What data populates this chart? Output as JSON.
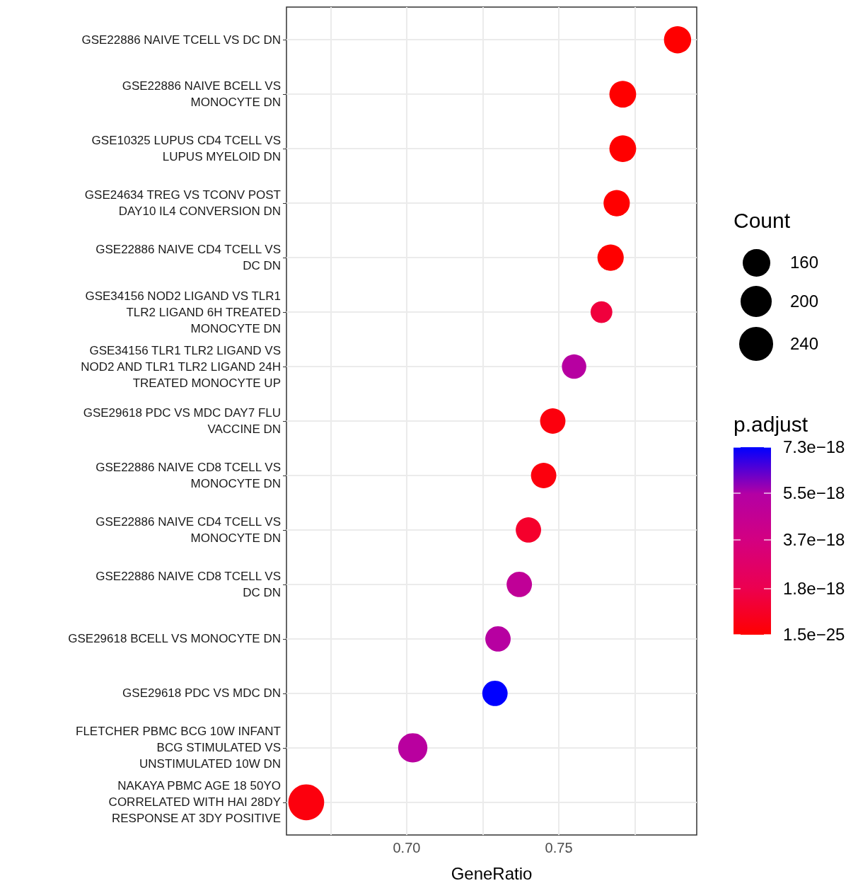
{
  "chart_data": {
    "type": "bubble",
    "orientation": "horizontal",
    "xlabel": "GeneRatio",
    "legend_title": "Count",
    "clabel": "p.adjust",
    "categories": [
      "GSE22886 NAIVE TCELL VS DC DN",
      "GSE22886 NAIVE BCELL VS MONOCYTE DN",
      "GSE10325 LUPUS CD4 TCELL VS LUPUS MYELOID DN",
      "GSE24634 TREG VS TCONV POST DAY10 IL4 CONVERSION DN",
      "GSE22886 NAIVE CD4 TCELL VS DC DN",
      "GSE34156 NOD2 LIGAND VS TLR1 TLR2 LIGAND 6H TREATED MONOCYTE DN",
      "GSE34156 TLR1 TLR2 LIGAND VS NOD2 AND TLR1 TLR2 LIGAND 24H TREATED MONOCYTE UP",
      "GSE29618 PDC VS MDC DAY7 FLU VACCINE DN",
      "GSE22886 NAIVE CD8 TCELL VS MONOCYTE DN",
      "GSE22886 NAIVE CD4 TCELL VS MONOCYTE DN",
      "GSE22886 NAIVE CD8 TCELL VS DC DN",
      "GSE29618 BCELL VS MONOCYTE DN",
      "GSE29618 PDC VS MDC DN",
      "FLETCHER PBMC BCG 10W INFANT BCG STIMULATED VS UNSTIMULATED 10W DN",
      "NAKAYA PBMC AGE 18 50YO CORRELATED WITH HAI 28DY RESPONSE AT 3DY POSITIVE"
    ],
    "values": [
      0.789,
      0.771,
      0.771,
      0.769,
      0.767,
      0.764,
      0.755,
      0.748,
      0.745,
      0.74,
      0.737,
      0.73,
      0.729,
      0.702,
      0.667
    ],
    "sizes": [
      155,
      150,
      150,
      145,
      145,
      100,
      125,
      135,
      135,
      135,
      135,
      135,
      135,
      180,
      270
    ],
    "size_legend": [
      160,
      200,
      240
    ],
    "cvalues": [
      1.5e-25,
      1.5e-25,
      1.5e-25,
      1.5e-25,
      1.5e-25,
      1.4e-18,
      5.3e-18,
      3e-19,
      3e-19,
      1e-18,
      4.8e-18,
      5.3e-18,
      7.3e-18,
      5.2e-18,
      3e-19
    ],
    "clim": [
      1.5e-25,
      7.3e-18
    ],
    "cticks": [
      {
        "value": 1.5e-25,
        "label": "1.5e−25"
      },
      {
        "value": 1.8e-18,
        "label": "1.8e−18"
      },
      {
        "value": 3.7e-18,
        "label": "3.7e−18"
      },
      {
        "value": 5.5e-18,
        "label": "5.5e−18"
      },
      {
        "value": 7.3e-18,
        "label": "7.3e−18"
      }
    ],
    "xlim": [
      0.6605,
      0.7953
    ],
    "xticks": [
      {
        "value": 0.675,
        "label": null
      },
      {
        "value": 0.7,
        "label": "0.70"
      },
      {
        "value": 0.725,
        "label": null
      },
      {
        "value": 0.75,
        "label": "0.75"
      },
      {
        "value": 0.775,
        "label": null
      }
    ],
    "grid": true
  }
}
